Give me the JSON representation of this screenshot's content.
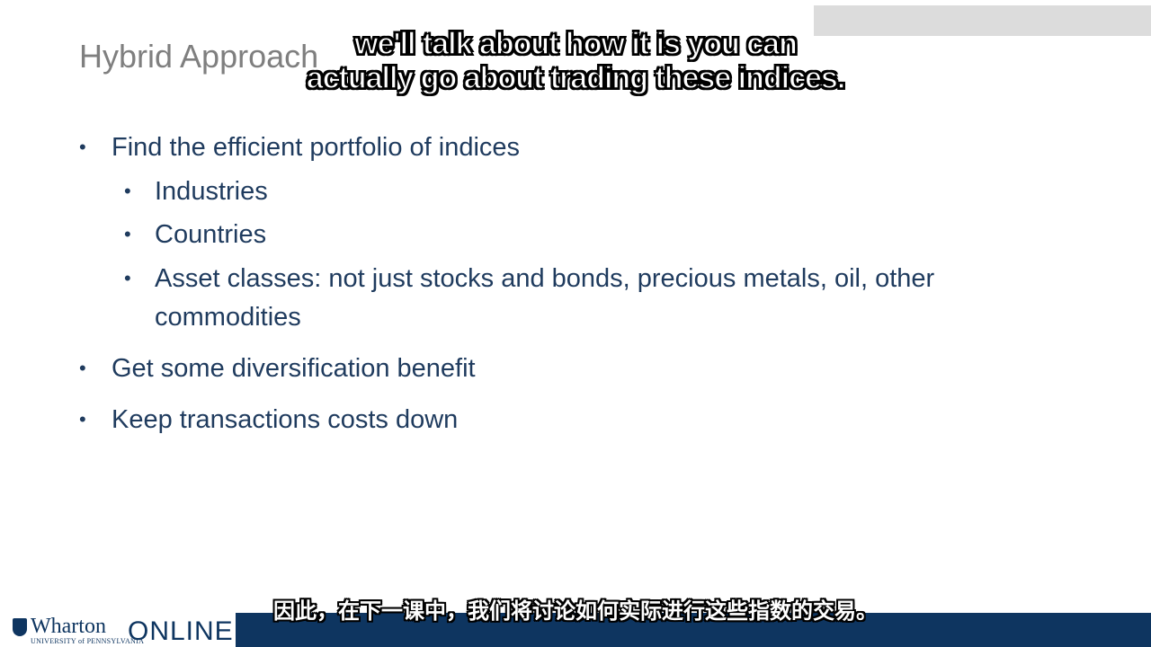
{
  "slide": {
    "title": "Hybrid Approach",
    "bullets": [
      {
        "text": "Find the efficient portfolio of indices"
      },
      {
        "text": "Industries"
      },
      {
        "text": "Countries"
      },
      {
        "text": "Asset classes: not just stocks and bonds, precious metals, oil, other"
      },
      {
        "text": "commodities"
      },
      {
        "text": "Get some diversification benefit"
      },
      {
        "text": "Keep transactions costs down"
      }
    ],
    "bullet_symbol": "•"
  },
  "subtitles": {
    "english_line1": "we'll talk about how it is you can",
    "english_line2": "actually go about trading these indices.",
    "chinese": "因此，在下一课中，我们将讨论如何实际进行这些指数的交易。"
  },
  "footer": {
    "logo_wharton": "Wharton",
    "logo_university": "UNIVERSITY of PENNSYLVANIA",
    "logo_online": "ONLINE"
  },
  "colors": {
    "title": "#7f7f7f",
    "body_text": "#1f3b5e",
    "footer_bar": "#0e3560",
    "top_bar": "#dcdcdc"
  }
}
